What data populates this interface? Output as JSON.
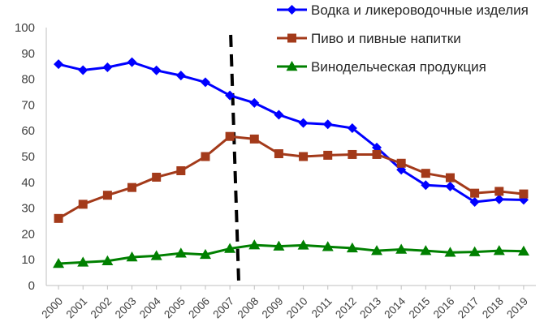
{
  "chart_data": {
    "type": "line",
    "title": "",
    "xlabel": "",
    "ylabel": "",
    "ylim": [
      0,
      100
    ],
    "yticks": [
      0,
      10,
      20,
      30,
      40,
      50,
      60,
      70,
      80,
      90,
      100
    ],
    "grid": false,
    "legend_position": "top-right",
    "categories": [
      "2000",
      "2001",
      "2002",
      "2003",
      "2004",
      "2005",
      "2006",
      "2007",
      "2008",
      "2009",
      "2010",
      "2011",
      "2012",
      "2013",
      "2014",
      "2015",
      "2016",
      "2017",
      "2018",
      "2019"
    ],
    "series": [
      {
        "name": "Водка и ликероводочные изделия",
        "color": "#0000ff",
        "marker": "diamond",
        "values": [
          85.8,
          83.5,
          84.6,
          86.6,
          83.4,
          81.4,
          78.8,
          73.7,
          70.8,
          66.2,
          63.0,
          62.5,
          61.0,
          53.5,
          44.9,
          38.9,
          38.4,
          32.4,
          33.4,
          33.2
        ]
      },
      {
        "name": "Пиво и пивные напитки",
        "color": "#a33a1a",
        "marker": "square",
        "values": [
          26.0,
          31.5,
          35.0,
          38.0,
          42.0,
          44.5,
          50.0,
          57.8,
          56.8,
          51.1,
          50.0,
          50.5,
          50.8,
          50.8,
          47.4,
          43.5,
          41.8,
          35.8,
          36.5,
          35.5
        ]
      },
      {
        "name": "Винодельческая продукция",
        "color": "#008000",
        "marker": "triangle",
        "values": [
          8.5,
          9.0,
          9.5,
          11.0,
          11.5,
          12.5,
          12.0,
          14.3,
          15.7,
          15.2,
          15.6,
          15.0,
          14.5,
          13.5,
          14.0,
          13.5,
          12.8,
          13.0,
          13.5,
          13.3
        ]
      }
    ],
    "annotations": [
      {
        "type": "vertical-dashed-line",
        "x": "2007",
        "color": "#000000"
      }
    ]
  }
}
